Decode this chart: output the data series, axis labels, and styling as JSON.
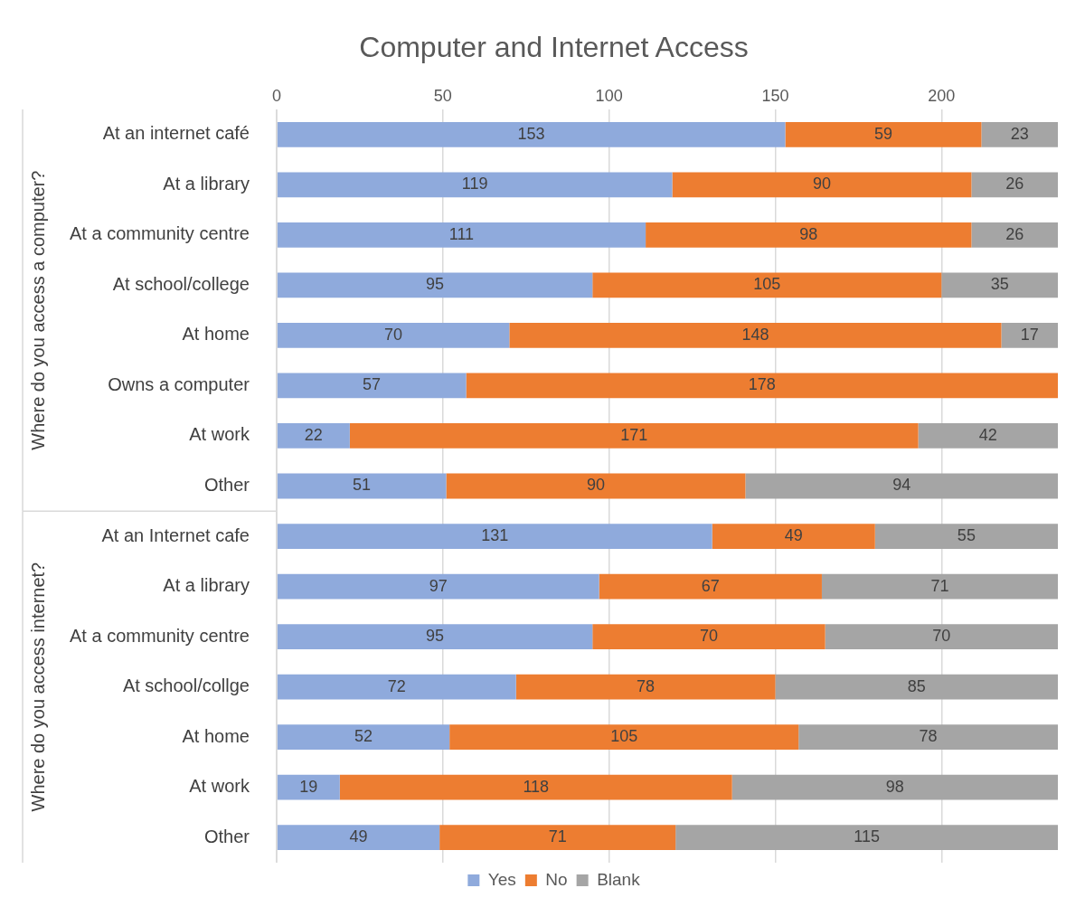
{
  "chart_data": {
    "type": "bar",
    "orientation": "horizontal",
    "stacked": true,
    "title": "Computer and Internet Access",
    "categories": [
      "At an internet café",
      "At a library",
      "At a community centre",
      "At school/college",
      "At home",
      "Owns a computer",
      "At work",
      "Other",
      "At an Internet cafe",
      "At a library",
      "At a community centre",
      "At school/collge",
      "At home",
      "At work",
      "Other"
    ],
    "series": [
      {
        "name": "Yes",
        "color": "#8faadc",
        "values": [
          153,
          119,
          111,
          95,
          70,
          57,
          22,
          51,
          131,
          97,
          95,
          72,
          52,
          19,
          49
        ]
      },
      {
        "name": "No",
        "color": "#ed7d31",
        "values": [
          59,
          90,
          98,
          105,
          148,
          178,
          171,
          90,
          49,
          67,
          70,
          78,
          105,
          118,
          71
        ]
      },
      {
        "name": "Blank",
        "color": "#a5a5a5",
        "values": [
          23,
          26,
          26,
          35,
          17,
          null,
          42,
          94,
          55,
          71,
          70,
          85,
          78,
          98,
          115
        ]
      }
    ],
    "annotations": [
      "Where do you access a computer?",
      "Where do you access internet?"
    ],
    "xlim": [
      0,
      235
    ],
    "xticks": [
      0,
      50,
      100,
      150,
      200
    ],
    "grid": "x",
    "legend": "bottom",
    "data_labels": true
  }
}
